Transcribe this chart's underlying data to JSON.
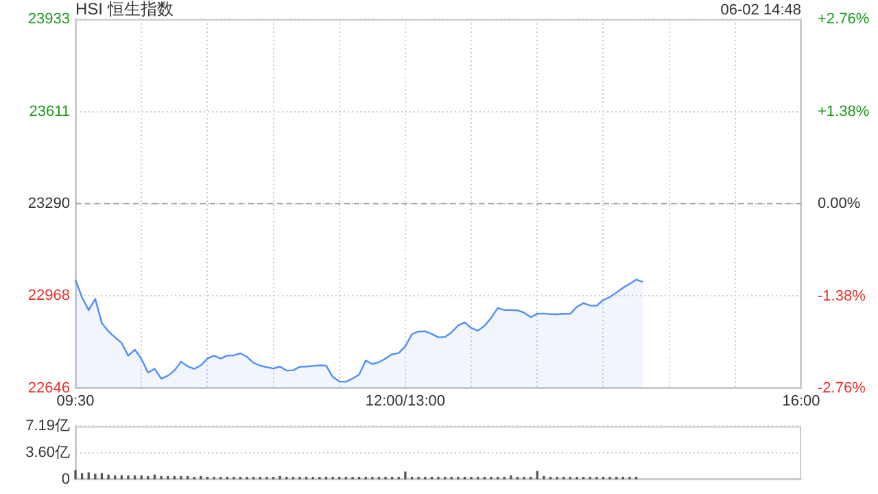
{
  "chart_data": [
    {
      "type": "area",
      "title": "HSI 恒生指数",
      "annotations": [
        "06-02 14:48"
      ],
      "categories": [
        "09:30",
        null,
        null,
        null,
        null,
        null,
        null,
        null,
        null,
        null,
        null,
        null,
        null,
        null,
        null,
        null,
        null,
        null,
        null,
        null,
        null,
        null,
        null,
        null,
        null,
        null,
        null,
        null,
        null,
        null,
        null,
        null,
        null,
        null,
        null,
        null,
        null,
        null,
        null,
        null,
        null,
        null,
        null,
        null,
        null,
        null,
        null,
        null,
        null,
        null,
        "12:00/13:00",
        null,
        null,
        null,
        null,
        null,
        null,
        null,
        null,
        null,
        null,
        null,
        null,
        null,
        null,
        null,
        null,
        null,
        null,
        null,
        null,
        null,
        null,
        null,
        null,
        null,
        null,
        null,
        null,
        null,
        null,
        null,
        null,
        null,
        null,
        null,
        null,
        null,
        null,
        null,
        null,
        null,
        null,
        null,
        null,
        null,
        null,
        null,
        null,
        null,
        null,
        null,
        null,
        null,
        null,
        null,
        null,
        null,
        null,
        null,
        "16:00"
      ],
      "series": [
        {
          "color": "#4f8ef7",
          "values": [
            23024,
            22963,
            22919,
            22958,
            22873,
            22845,
            22824,
            22804,
            22760,
            22781,
            22749,
            22701,
            22714,
            22680,
            22690,
            22708,
            22739,
            22723,
            22714,
            22726,
            22750,
            22760,
            22750,
            22760,
            22761,
            22768,
            22756,
            22735,
            22725,
            22720,
            22715,
            22722,
            22708,
            22709,
            22721,
            22722,
            22724,
            22726,
            22725,
            22686,
            22670,
            22669,
            22680,
            22694,
            22743,
            22731,
            22737,
            22750,
            22765,
            22769,
            22793,
            22835,
            22844,
            22845,
            22836,
            22824,
            22825,
            22841,
            22865,
            22876,
            22856,
            22847,
            22864,
            22891,
            22926,
            22919,
            22919,
            22918,
            22910,
            22894,
            22906,
            22907,
            22905,
            22904,
            22906,
            22906,
            22930,
            22943,
            22935,
            22934,
            22954,
            22964,
            22980,
            22997,
            23010,
            23025,
            23017,
            null,
            null,
            null,
            null,
            null,
            null,
            null,
            null,
            null,
            null,
            null,
            null,
            null,
            null,
            null,
            null,
            null,
            null,
            null,
            null,
            null,
            null,
            null,
            null
          ]
        }
      ],
      "ylim": [
        22646,
        23933
      ],
      "yticks": [
        22646,
        22968,
        23290,
        23611,
        23933
      ],
      "y2lim": [
        -2.76,
        2.76
      ],
      "y2ticks": [
        {
          "value": -2.76,
          "label": "-2.76%"
        },
        {
          "value": -1.38,
          "label": "-1.38%"
        },
        {
          "value": 0,
          "label": "0.00%"
        },
        {
          "value": 1.38,
          "label": "+1.38%"
        },
        {
          "value": 2.76,
          "label": "+2.76%"
        }
      ],
      "ref_lines": [
        {
          "axis": "y",
          "value": 23290,
          "line_style": "dashed"
        }
      ],
      "grid": true
    },
    {
      "type": "bar",
      "categories": [
        null,
        null,
        null,
        null,
        null,
        null,
        null,
        null,
        null,
        null,
        null,
        null,
        null,
        null,
        null,
        null,
        null,
        null,
        null,
        null,
        null,
        null,
        null,
        null,
        null,
        null,
        null,
        null,
        null,
        null,
        null,
        null,
        null,
        null,
        null,
        null,
        null,
        null,
        null,
        null,
        null,
        null,
        null,
        null,
        null,
        null,
        null,
        null,
        null,
        null,
        null,
        null,
        null,
        null,
        null,
        null,
        null,
        null,
        null,
        null,
        null,
        null,
        null,
        null,
        null,
        null,
        null,
        null,
        null,
        null,
        null,
        null,
        null,
        null,
        null,
        null,
        null,
        null,
        null,
        null,
        null,
        null,
        null,
        null,
        null,
        null,
        null,
        null,
        null,
        null,
        null,
        null,
        null,
        null,
        null,
        null,
        null,
        null,
        null,
        null,
        null,
        null,
        null,
        null,
        null,
        null,
        null,
        null,
        null,
        null,
        null
      ],
      "series": [
        {
          "color": "#555555",
          "values": [
            1.2,
            0.8,
            0.9,
            0.7,
            0.8,
            0.6,
            0.5,
            0.5,
            0.5,
            0.5,
            0.5,
            0.4,
            0.6,
            0.4,
            0.4,
            0.4,
            0.4,
            0.4,
            0.3,
            0.4,
            0.3,
            0.3,
            0.3,
            0.3,
            0.3,
            0.3,
            0.3,
            0.3,
            0.3,
            0.3,
            0.3,
            0.4,
            0.3,
            0.3,
            0.3,
            0.3,
            0.3,
            0.3,
            0.3,
            0.3,
            0.3,
            0.3,
            0.3,
            0.3,
            0.3,
            0.3,
            0.3,
            0.3,
            0.3,
            0.3,
            1.0,
            0.3,
            0.3,
            0.3,
            0.3,
            0.3,
            0.3,
            0.3,
            0.3,
            0.3,
            0.3,
            0.3,
            0.3,
            0.3,
            0.3,
            0.3,
            0.5,
            0.3,
            0.3,
            0.3,
            1.1,
            0.4,
            0.3,
            0.3,
            0.3,
            0.3,
            0.3,
            0.3,
            0.3,
            0.3,
            0.3,
            0.3,
            0.3,
            0.3,
            0.3,
            0.3,
            null,
            null,
            null,
            null,
            null,
            null,
            null,
            null,
            null,
            null,
            null,
            null,
            null,
            null,
            null,
            null,
            null,
            null,
            null,
            null,
            null,
            null,
            null,
            null,
            null
          ]
        }
      ],
      "ylim": [
        0,
        7.19
      ],
      "yticks": [
        0,
        {
          "value": 3.6,
          "label": "3.60亿"
        },
        {
          "value": 7.19,
          "label": "7.19亿"
        }
      ],
      "grid": "y",
      "tick_labels": "y"
    }
  ]
}
